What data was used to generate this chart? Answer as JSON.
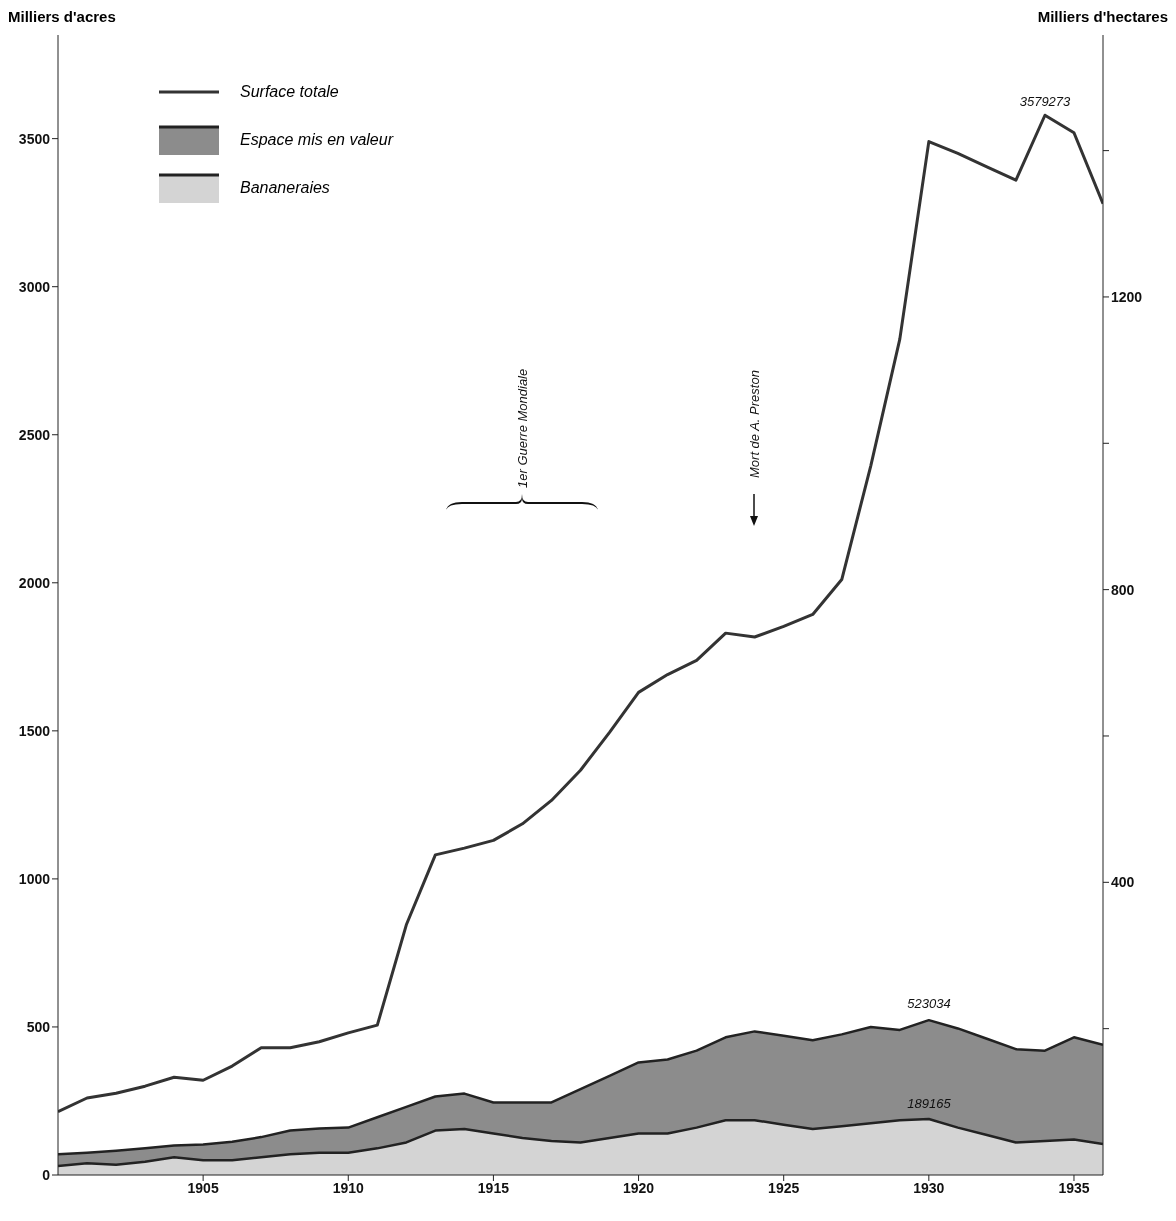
{
  "chart_data": {
    "type": "line",
    "ylabel": "Milliers d'acres",
    "y2label": "Milliers d'hectares",
    "x": [
      1900,
      1901,
      1902,
      1903,
      1904,
      1905,
      1906,
      1907,
      1908,
      1909,
      1910,
      1911,
      1912,
      1913,
      1914,
      1915,
      1916,
      1917,
      1918,
      1919,
      1920,
      1921,
      1922,
      1923,
      1924,
      1925,
      1926,
      1927,
      1928,
      1929,
      1930,
      1931,
      1932,
      1933,
      1934,
      1935,
      1936
    ],
    "series": [
      {
        "name": "Surface totale",
        "color": "#333333",
        "values": [
          214,
          260,
          276,
          300,
          330,
          320,
          368,
          430,
          430,
          450,
          480,
          506,
          845,
          1081,
          1104,
          1130,
          1186,
          1265,
          1367,
          1495,
          1630,
          1690,
          1738,
          1830,
          1817,
          1853,
          1893,
          2011,
          2395,
          2823,
          3490,
          3450,
          3405,
          3360,
          3579,
          3520,
          3280
        ]
      },
      {
        "name": "Espace mis en valeur",
        "type": "area",
        "color": "#8c8c8c",
        "values": [
          70,
          75,
          82,
          90,
          100,
          103,
          112,
          128,
          150,
          157,
          160,
          195,
          230,
          265,
          275,
          245,
          245,
          245,
          290,
          335,
          380,
          390,
          420,
          465,
          485,
          470,
          455,
          475,
          500,
          490,
          523,
          495,
          460,
          425,
          420,
          465,
          440
        ]
      },
      {
        "name": "Bananeraies",
        "type": "area",
        "color": "#d4d4d4",
        "values": [
          30,
          40,
          35,
          45,
          60,
          50,
          50,
          60,
          70,
          75,
          75,
          90,
          110,
          150,
          155,
          140,
          125,
          115,
          110,
          125,
          140,
          140,
          160,
          185,
          185,
          170,
          155,
          165,
          175,
          185,
          189,
          160,
          135,
          110,
          115,
          120,
          105
        ]
      }
    ],
    "xlim": [
      1900,
      1936
    ],
    "xticks": [
      1905,
      1910,
      1915,
      1920,
      1925,
      1930,
      1935
    ],
    "ylim": [
      0,
      3850
    ],
    "yticks": [
      0,
      500,
      1000,
      1500,
      2000,
      2500,
      3000,
      3500
    ],
    "y2lim": [
      0,
      1558
    ],
    "y2ticks": [
      {
        "value": 200,
        "label": null
      },
      400,
      {
        "value": 600,
        "label": null
      },
      800,
      {
        "value": 1000,
        "label": null
      },
      1200,
      {
        "value": 1400,
        "label": null
      }
    ],
    "annotations": [
      "1er Guerre Mondiale",
      "Mort de A. Preston",
      "3579273",
      "523034",
      "189165"
    ],
    "legend": "top left",
    "marker": "none",
    "grid": false
  }
}
